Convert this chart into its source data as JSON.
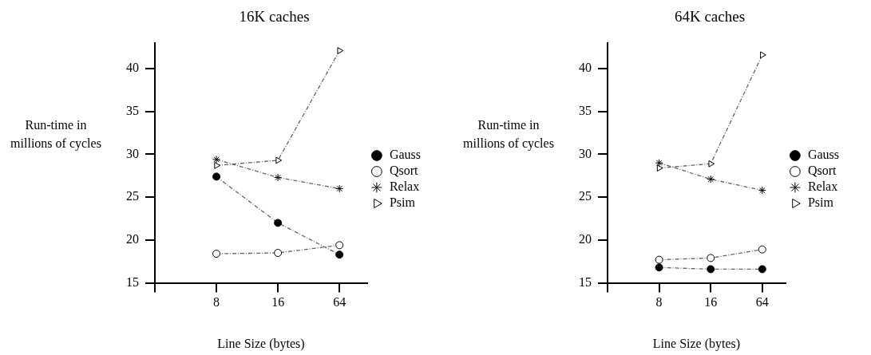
{
  "chart_data": [
    {
      "type": "line",
      "title": "16K caches",
      "xlabel": "Line Size (bytes)",
      "ylabel": "Run-time in millions of cycles",
      "categories": [
        "8",
        "16",
        "64"
      ],
      "ylim": [
        15,
        43
      ],
      "yticks": [
        15,
        20,
        25,
        30,
        35,
        40
      ],
      "grid": false,
      "legend": "right",
      "line_style": "dashed",
      "series": [
        {
          "name": "Gauss",
          "color": "#000000",
          "marker": "circle",
          "values": [
            27.4,
            22.0,
            18.3
          ]
        },
        {
          "name": "Qsort",
          "color": "#ffffff",
          "marker": "circle",
          "values": [
            18.4,
            18.5,
            19.4
          ]
        },
        {
          "name": "Relax",
          "color": "#000000",
          "marker": "cross",
          "values": [
            29.4,
            27.3,
            26.0
          ]
        },
        {
          "name": "Psim",
          "color": "#ffffff",
          "marker": "triangle",
          "values": [
            28.7,
            29.3,
            42.1
          ]
        }
      ]
    },
    {
      "type": "line",
      "title": "64K caches",
      "xlabel": "Line Size (bytes)",
      "ylabel": "Run-time in millions of cycles",
      "categories": [
        "8",
        "16",
        "64"
      ],
      "ylim": [
        15,
        43
      ],
      "yticks": [
        15,
        20,
        25,
        30,
        35,
        40
      ],
      "grid": false,
      "legend": "right",
      "line_style": "dashed",
      "series": [
        {
          "name": "Gauss",
          "color": "#000000",
          "marker": "circle",
          "values": [
            16.8,
            16.6,
            16.6
          ]
        },
        {
          "name": "Qsort",
          "color": "#ffffff",
          "marker": "circle",
          "values": [
            17.7,
            17.9,
            18.9
          ]
        },
        {
          "name": "Relax",
          "color": "#000000",
          "marker": "cross",
          "values": [
            29.0,
            27.1,
            25.8
          ]
        },
        {
          "name": "Psim",
          "color": "#ffffff",
          "marker": "triangle",
          "values": [
            28.4,
            28.9,
            41.6
          ]
        }
      ]
    }
  ]
}
